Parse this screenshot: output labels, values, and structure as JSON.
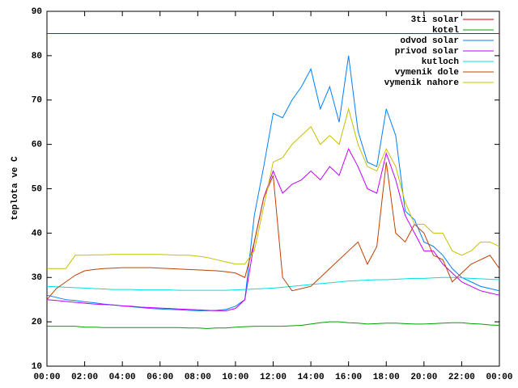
{
  "chart_data": {
    "type": "line",
    "ylabel": "teplota ve C",
    "x": [
      0,
      0.5,
      1,
      1.5,
      2,
      2.5,
      3,
      3.5,
      4,
      4.5,
      5,
      5.5,
      6,
      6.5,
      7,
      7.5,
      8,
      8.5,
      9,
      9.5,
      10,
      10.5,
      11,
      11.5,
      12,
      12.5,
      13,
      13.5,
      14,
      14.5,
      15,
      15.5,
      16,
      16.5,
      17,
      17.5,
      18,
      18.5,
      19,
      19.5,
      20,
      20.5,
      21,
      21.5,
      22,
      22.5,
      23,
      23.5,
      24
    ],
    "xlim": [
      0,
      24
    ],
    "xticks": [
      {
        "value": 0,
        "label": "00:00"
      },
      {
        "value": 2,
        "label": "02:00"
      },
      {
        "value": 4,
        "label": "04:00"
      },
      {
        "value": 6,
        "label": "06:00"
      },
      {
        "value": 8,
        "label": "08:00"
      },
      {
        "value": 10,
        "label": "10:00"
      },
      {
        "value": 12,
        "label": "12:00"
      },
      {
        "value": 14,
        "label": "14:00"
      },
      {
        "value": 16,
        "label": "16:00"
      },
      {
        "value": 18,
        "label": "18:00"
      },
      {
        "value": 20,
        "label": "20:00"
      },
      {
        "value": 22,
        "label": "22:00"
      },
      {
        "value": 24,
        "label": "00:00"
      }
    ],
    "ylim": [
      10,
      90
    ],
    "yticks": [
      10,
      20,
      30,
      40,
      50,
      60,
      70,
      80,
      90
    ],
    "legend": "top-right",
    "series": [
      {
        "name": "3ti solar",
        "color": "#cc0000",
        "values": [
          85,
          85,
          85,
          85,
          85,
          85,
          85,
          85,
          85,
          85,
          85,
          85,
          85,
          85,
          85,
          85,
          85,
          85,
          85,
          85,
          85,
          85,
          85,
          85,
          85,
          85,
          85,
          85,
          85,
          85,
          85,
          85,
          85,
          85,
          85,
          85,
          85,
          85,
          85,
          85,
          85,
          85,
          85,
          85,
          85,
          85,
          85,
          85,
          85
        ]
      },
      {
        "name": "kotel",
        "color": "#00a000",
        "values": [
          19,
          19,
          19,
          19,
          18.8,
          18.8,
          18.7,
          18.7,
          18.7,
          18.7,
          18.7,
          18.7,
          18.7,
          18.7,
          18.7,
          18.6,
          18.6,
          18.5,
          18.6,
          18.6,
          18.8,
          18.9,
          19,
          19,
          19,
          19,
          19.1,
          19.2,
          19.5,
          19.8,
          20,
          20,
          19.8,
          19.7,
          19.5,
          19.6,
          19.7,
          19.7,
          19.6,
          19.5,
          19.5,
          19.6,
          19.7,
          19.8,
          19.8,
          19.6,
          19.5,
          19.3,
          19.2
        ]
      },
      {
        "name": "odvod solar",
        "color": "#0080ff",
        "values": [
          26,
          25.5,
          25,
          24.8,
          24.5,
          24.3,
          24,
          23.8,
          23.6,
          23.4,
          23.2,
          23,
          22.9,
          22.8,
          22.7,
          22.6,
          22.5,
          22.5,
          22.6,
          22.8,
          23.5,
          25,
          44,
          55,
          67,
          66,
          70,
          73,
          77,
          68,
          73,
          65,
          80,
          63,
          56,
          55,
          68,
          62,
          45,
          43,
          38,
          37,
          35,
          32,
          30,
          29,
          28,
          27.5,
          27
        ]
      },
      {
        "name": "privod solar",
        "color": "#c000ff",
        "values": [
          25,
          24.8,
          24.6,
          24.4,
          24.2,
          24,
          23.9,
          23.8,
          23.6,
          23.5,
          23.3,
          23.2,
          23.1,
          23,
          22.9,
          22.8,
          22.7,
          22.6,
          22.5,
          22.5,
          23,
          25,
          38,
          48,
          54,
          49,
          51,
          52,
          54,
          52,
          55,
          53,
          59,
          55,
          50,
          49,
          58,
          52,
          44,
          40,
          36,
          36,
          33,
          31,
          29,
          28,
          27,
          26.5,
          26
        ]
      },
      {
        "name": "kutloch",
        "color": "#00e0e0",
        "values": [
          28,
          27.9,
          27.8,
          27.7,
          27.6,
          27.5,
          27.4,
          27.3,
          27.3,
          27.3,
          27.2,
          27.2,
          27.2,
          27.2,
          27.1,
          27.1,
          27.1,
          27.1,
          27.1,
          27.1,
          27.2,
          27.3,
          27.4,
          27.5,
          27.6,
          27.8,
          28,
          28.2,
          28.4,
          28.6,
          28.8,
          29,
          29.2,
          29.3,
          29.4,
          29.5,
          29.5,
          29.6,
          29.7,
          29.8,
          29.8,
          29.9,
          30,
          30,
          29.9,
          29.8,
          29.7,
          29.6,
          29.5
        ]
      },
      {
        "name": "vymenik dole",
        "color": "#c04000",
        "values": [
          25,
          27.5,
          29,
          30.5,
          31.5,
          31.8,
          32,
          32.1,
          32.2,
          32.2,
          32.2,
          32.2,
          32.1,
          32,
          31.9,
          31.8,
          31.7,
          31.6,
          31.5,
          31.3,
          31,
          30,
          38,
          48,
          53,
          30,
          27,
          27.5,
          28,
          30,
          32,
          34,
          36,
          38,
          33,
          37,
          56,
          40,
          38,
          42,
          40,
          35,
          34,
          29,
          31,
          33,
          34,
          35,
          32
        ]
      },
      {
        "name": "vymenik nahore",
        "color": "#c8c000",
        "values": [
          32,
          32,
          32,
          35,
          35,
          35.1,
          35.1,
          35.2,
          35.2,
          35.2,
          35.2,
          35.2,
          35.2,
          35.1,
          35,
          35,
          34.8,
          34.5,
          34,
          33.5,
          33,
          33,
          36,
          46,
          56,
          57,
          60,
          62,
          64,
          60,
          62,
          60,
          68,
          60,
          55,
          54,
          59,
          55,
          47,
          42,
          42,
          40,
          40,
          36,
          35,
          36,
          38,
          38,
          37
        ]
      }
    ]
  }
}
